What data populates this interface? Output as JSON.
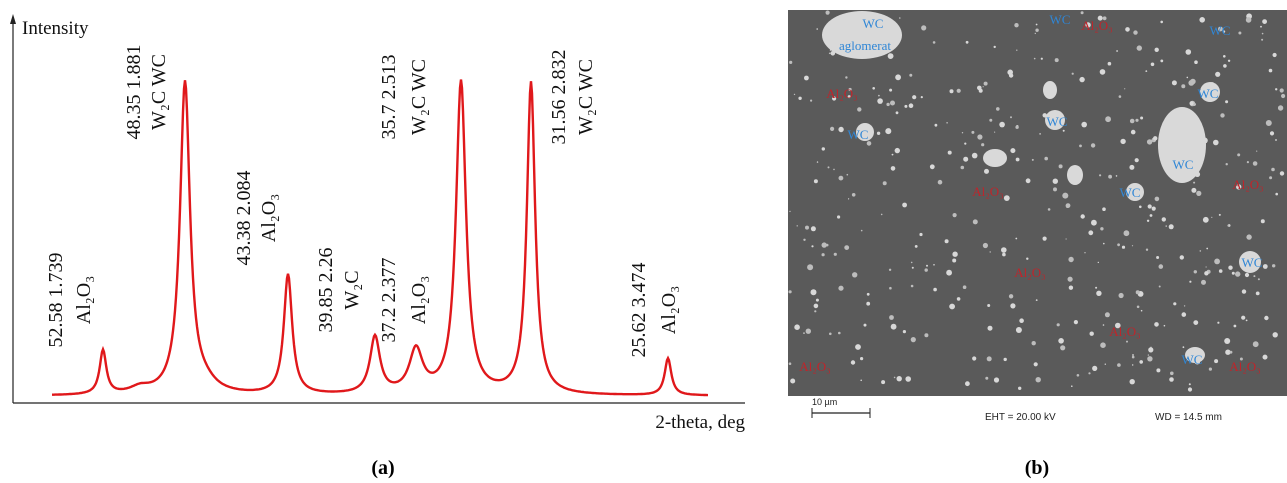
{
  "panel_a": {
    "y_axis_label": "Intensity",
    "x_axis_label": "2-theta, deg",
    "caption": "(a)",
    "peaks": [
      {
        "position": "52.58  1.739",
        "phase": "Al₂O₃"
      },
      {
        "position": "48.35  1.881",
        "phase": "W₂C  WC"
      },
      {
        "position": "43.38  2.084",
        "phase": "Al₂O₃"
      },
      {
        "position": "39.85  2.26",
        "phase": "W₂C"
      },
      {
        "position": "37.2  2.377",
        "phase": "Al₂O₃"
      },
      {
        "position": "35.7  2.513",
        "phase": "W₂C  WC"
      },
      {
        "position": "31.56  2.832",
        "phase": "W₂C  WC"
      },
      {
        "position": "25.62  3.474",
        "phase": "Al₂O₃"
      }
    ]
  },
  "panel_b": {
    "caption": "(b)",
    "labels": [
      {
        "text": "WC",
        "color": "#2f86d6"
      },
      {
        "text": "aglomerat",
        "color": "#2f86d6"
      },
      {
        "text": "WC",
        "color": "#2f86d6"
      },
      {
        "text": "Al₂O₃",
        "color": "#c0242a"
      },
      {
        "text": "WC",
        "color": "#2f86d6"
      },
      {
        "text": "Al₂O₃",
        "color": "#c0242a"
      },
      {
        "text": "WC",
        "color": "#2f86d6"
      },
      {
        "text": "WC",
        "color": "#2f86d6"
      },
      {
        "text": "WC",
        "color": "#2f86d6"
      },
      {
        "text": "WC",
        "color": "#2f86d6"
      },
      {
        "text": "Al₂O₃",
        "color": "#c0242a"
      },
      {
        "text": "WC",
        "color": "#2f86d6"
      },
      {
        "text": "Al₂O₃",
        "color": "#c0242a"
      },
      {
        "text": "WC",
        "color": "#2f86d6"
      },
      {
        "text": "Al₂O₃",
        "color": "#c0242a"
      },
      {
        "text": "Al₂O₃",
        "color": "#c0242a"
      },
      {
        "text": "Al₂O₃",
        "color": "#c0242a"
      },
      {
        "text": "WC",
        "color": "#2f86d6"
      },
      {
        "text": "Al₂O₃",
        "color": "#c0242a"
      }
    ],
    "scale_bar": "10 µm",
    "eht": "EHT = 20.00 kV",
    "wd": "WD = 14.5 mm"
  }
}
